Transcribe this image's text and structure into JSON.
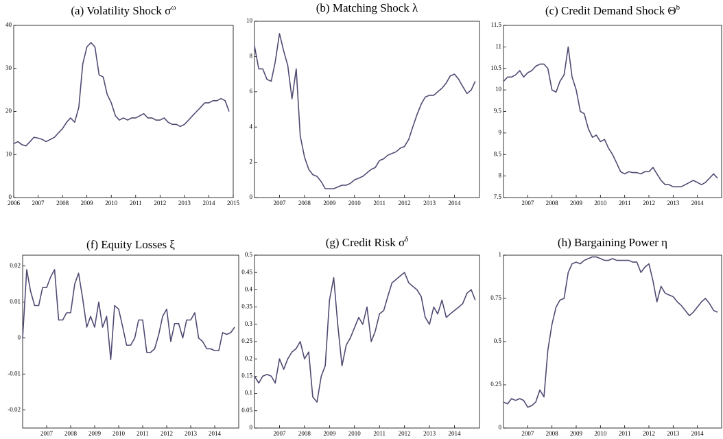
{
  "chart_data": [
    {
      "type": "line",
      "title": "(a) Volatility Shock σ",
      "title_superscript": "ω",
      "color": "#4f4a72",
      "x": [
        2006,
        2006.17,
        2006.33,
        2006.5,
        2006.67,
        2006.83,
        2007,
        2007.17,
        2007.33,
        2007.5,
        2007.67,
        2007.83,
        2008,
        2008.17,
        2008.33,
        2008.5,
        2008.67,
        2008.83,
        2009,
        2009.17,
        2009.33,
        2009.5,
        2009.67,
        2009.83,
        2010,
        2010.17,
        2010.33,
        2010.5,
        2010.67,
        2010.83,
        2011,
        2011.17,
        2011.33,
        2011.5,
        2011.67,
        2011.83,
        2012,
        2012.17,
        2012.33,
        2012.5,
        2012.67,
        2012.83,
        2013,
        2013.17,
        2013.33,
        2013.5,
        2013.67,
        2013.83,
        2014,
        2014.17,
        2014.33,
        2014.5,
        2014.67,
        2014.83
      ],
      "values": [
        12.5,
        13,
        12.3,
        12,
        13,
        14,
        13.8,
        13.5,
        13,
        13.5,
        14,
        15,
        16,
        17.5,
        18.5,
        17.5,
        21,
        31,
        35,
        36,
        35,
        28.5,
        28,
        24,
        22,
        19,
        18,
        18.5,
        18,
        18.5,
        18.5,
        19,
        19.5,
        18.5,
        18.5,
        18,
        18,
        18.5,
        17.5,
        17,
        17,
        16.5,
        17,
        18,
        19,
        20,
        21,
        22,
        22,
        22.5,
        22.5,
        23,
        22.5,
        20
      ],
      "xlim": [
        2006,
        2015
      ],
      "xticks": [
        2006,
        2007,
        2008,
        2009,
        2010,
        2011,
        2012,
        2013,
        2014,
        2015
      ],
      "ylim": [
        0,
        40
      ],
      "yticks": [
        0,
        10,
        20,
        30,
        40
      ]
    },
    {
      "type": "line",
      "title": "(b) Matching Shock λ",
      "color": "#4f4a72",
      "x": [
        2006,
        2006.17,
        2006.33,
        2006.5,
        2006.67,
        2006.83,
        2007,
        2007.17,
        2007.33,
        2007.5,
        2007.67,
        2007.83,
        2008,
        2008.17,
        2008.33,
        2008.5,
        2008.67,
        2008.83,
        2009,
        2009.17,
        2009.33,
        2009.5,
        2009.67,
        2009.83,
        2010,
        2010.17,
        2010.33,
        2010.5,
        2010.67,
        2010.83,
        2011,
        2011.17,
        2011.33,
        2011.5,
        2011.67,
        2011.83,
        2012,
        2012.17,
        2012.33,
        2012.5,
        2012.67,
        2012.83,
        2013,
        2013.17,
        2013.33,
        2013.5,
        2013.67,
        2013.83,
        2014,
        2014.17,
        2014.33,
        2014.5,
        2014.67,
        2014.83
      ],
      "values": [
        8.6,
        7.3,
        7.3,
        6.7,
        6.6,
        7.7,
        9.3,
        8.3,
        7.5,
        5.6,
        7.3,
        3.5,
        2.3,
        1.6,
        1.3,
        1.2,
        0.9,
        0.5,
        0.5,
        0.5,
        0.6,
        0.7,
        0.7,
        0.8,
        1.0,
        1.1,
        1.2,
        1.4,
        1.6,
        1.7,
        2.1,
        2.2,
        2.4,
        2.5,
        2.6,
        2.8,
        2.9,
        3.3,
        4.0,
        4.7,
        5.3,
        5.7,
        5.8,
        5.8,
        6.0,
        6.2,
        6.5,
        6.9,
        7.0,
        6.7,
        6.3,
        5.9,
        6.1,
        6.6
      ],
      "xlim": [
        2006,
        2015
      ],
      "xticks": [
        2007,
        2008,
        2009,
        2010,
        2011,
        2012,
        2013,
        2014
      ],
      "ylim": [
        0,
        10
      ],
      "yticks": [
        0,
        2,
        4,
        6,
        8,
        10
      ]
    },
    {
      "type": "line",
      "title": "(c) Credit Demand Shock Θ",
      "title_superscript": "b",
      "color": "#4f4a72",
      "x": [
        2006,
        2006.17,
        2006.33,
        2006.5,
        2006.67,
        2006.83,
        2007,
        2007.17,
        2007.33,
        2007.5,
        2007.67,
        2007.83,
        2008,
        2008.17,
        2008.33,
        2008.5,
        2008.67,
        2008.83,
        2009,
        2009.17,
        2009.33,
        2009.5,
        2009.67,
        2009.83,
        2010,
        2010.17,
        2010.33,
        2010.5,
        2010.67,
        2010.83,
        2011,
        2011.17,
        2011.33,
        2011.5,
        2011.67,
        2011.83,
        2012,
        2012.17,
        2012.33,
        2012.5,
        2012.67,
        2012.83,
        2013,
        2013.17,
        2013.33,
        2013.5,
        2013.67,
        2013.83,
        2014,
        2014.17,
        2014.33,
        2014.5,
        2014.67,
        2014.83
      ],
      "values": [
        10.2,
        10.3,
        10.3,
        10.35,
        10.45,
        10.3,
        10.4,
        10.45,
        10.55,
        10.6,
        10.6,
        10.5,
        10.0,
        9.95,
        10.2,
        10.35,
        11.0,
        10.3,
        10.0,
        9.5,
        9.45,
        9.1,
        8.9,
        8.95,
        8.8,
        8.85,
        8.65,
        8.5,
        8.3,
        8.1,
        8.05,
        8.1,
        8.08,
        8.08,
        8.05,
        8.1,
        8.1,
        8.2,
        8.05,
        7.9,
        7.8,
        7.8,
        7.75,
        7.75,
        7.75,
        7.8,
        7.85,
        7.9,
        7.85,
        7.8,
        7.85,
        7.95,
        8.05,
        7.95
      ],
      "xlim": [
        2006,
        2015
      ],
      "xticks": [
        2007,
        2008,
        2009,
        2010,
        2011,
        2012,
        2013,
        2014
      ],
      "ylim": [
        7.5,
        11.5
      ],
      "yticks": [
        7.5,
        8,
        8.5,
        9,
        9.5,
        10,
        10.5,
        11,
        11.5
      ]
    },
    {
      "type": "line",
      "title": "(f) Equity Losses ξ",
      "color": "#4f4a72",
      "x": [
        2006,
        2006.17,
        2006.33,
        2006.5,
        2006.67,
        2006.83,
        2007,
        2007.17,
        2007.33,
        2007.5,
        2007.67,
        2007.83,
        2008,
        2008.17,
        2008.33,
        2008.5,
        2008.67,
        2008.83,
        2009,
        2009.17,
        2009.33,
        2009.5,
        2009.67,
        2009.83,
        2010,
        2010.17,
        2010.33,
        2010.5,
        2010.67,
        2010.83,
        2011,
        2011.17,
        2011.33,
        2011.5,
        2011.67,
        2011.83,
        2012,
        2012.17,
        2012.33,
        2012.5,
        2012.67,
        2012.83,
        2013,
        2013.17,
        2013.33,
        2013.5,
        2013.67,
        2013.83,
        2014,
        2014.17,
        2014.33,
        2014.5,
        2014.67,
        2014.83
      ],
      "values": [
        0,
        0.019,
        0.013,
        0.009,
        0.009,
        0.014,
        0.014,
        0.017,
        0.019,
        0.005,
        0.005,
        0.007,
        0.007,
        0.015,
        0.018,
        0.011,
        0.003,
        0.006,
        0.003,
        0.01,
        0.003,
        0.006,
        -0.006,
        0.009,
        0.008,
        0.003,
        -0.002,
        -0.002,
        0.0,
        0.005,
        0.005,
        -0.004,
        -0.004,
        -0.003,
        0.001,
        0.006,
        0.008,
        -0.001,
        0.004,
        0.004,
        0.0,
        0.005,
        0.005,
        0.007,
        0.0,
        -0.001,
        -0.003,
        -0.003,
        -0.0035,
        -0.0035,
        0.0015,
        0.001,
        0.0015,
        0.003
      ],
      "xlim": [
        2006,
        2015
      ],
      "xticks": [
        2007,
        2008,
        2009,
        2010,
        2011,
        2012,
        2013,
        2014
      ],
      "ylim": [
        -0.025,
        0.023
      ],
      "yticks": [
        -0.02,
        -0.01,
        0,
        0.01,
        0.02
      ]
    },
    {
      "type": "line",
      "title": "(g) Credit Risk σ",
      "title_superscript": "δ",
      "color": "#4f4a72",
      "x": [
        2006,
        2006.17,
        2006.33,
        2006.5,
        2006.67,
        2006.83,
        2007,
        2007.17,
        2007.33,
        2007.5,
        2007.67,
        2007.83,
        2008,
        2008.17,
        2008.33,
        2008.5,
        2008.67,
        2008.83,
        2009,
        2009.17,
        2009.33,
        2009.5,
        2009.67,
        2009.83,
        2010,
        2010.17,
        2010.33,
        2010.5,
        2010.67,
        2010.83,
        2011,
        2011.17,
        2011.33,
        2011.5,
        2011.67,
        2011.83,
        2012,
        2012.17,
        2012.33,
        2012.5,
        2012.67,
        2012.83,
        2013,
        2013.17,
        2013.33,
        2013.5,
        2013.67,
        2013.83,
        2014,
        2014.17,
        2014.33,
        2014.5,
        2014.67,
        2014.83
      ],
      "values": [
        0.15,
        0.13,
        0.15,
        0.155,
        0.15,
        0.13,
        0.2,
        0.17,
        0.2,
        0.22,
        0.23,
        0.25,
        0.2,
        0.22,
        0.09,
        0.075,
        0.15,
        0.18,
        0.37,
        0.435,
        0.3,
        0.18,
        0.24,
        0.26,
        0.29,
        0.32,
        0.3,
        0.35,
        0.25,
        0.28,
        0.33,
        0.34,
        0.38,
        0.42,
        0.43,
        0.44,
        0.45,
        0.42,
        0.41,
        0.4,
        0.38,
        0.32,
        0.3,
        0.35,
        0.33,
        0.37,
        0.32,
        0.33,
        0.34,
        0.35,
        0.36,
        0.39,
        0.4,
        0.37
      ],
      "xlim": [
        2006,
        2015
      ],
      "xticks": [
        2007,
        2008,
        2009,
        2010,
        2011,
        2012,
        2013,
        2014
      ],
      "ylim": [
        0,
        0.5
      ],
      "yticks": [
        0,
        0.05,
        0.1,
        0.15,
        0.2,
        0.25,
        0.3,
        0.35,
        0.4,
        0.45,
        0.5
      ]
    },
    {
      "type": "line",
      "title": "(h) Bargaining Power η",
      "color": "#4f4a72",
      "x": [
        2006,
        2006.17,
        2006.33,
        2006.5,
        2006.67,
        2006.83,
        2007,
        2007.17,
        2007.33,
        2007.5,
        2007.67,
        2007.83,
        2008,
        2008.17,
        2008.33,
        2008.5,
        2008.67,
        2008.83,
        2009,
        2009.17,
        2009.33,
        2009.5,
        2009.67,
        2009.83,
        2010,
        2010.17,
        2010.33,
        2010.5,
        2010.67,
        2010.83,
        2011,
        2011.17,
        2011.33,
        2011.5,
        2011.67,
        2011.83,
        2012,
        2012.17,
        2012.33,
        2012.5,
        2012.67,
        2012.83,
        2013,
        2013.17,
        2013.33,
        2013.5,
        2013.67,
        2013.83,
        2014,
        2014.17,
        2014.33,
        2014.5,
        2014.67,
        2014.83
      ],
      "values": [
        0.15,
        0.14,
        0.17,
        0.16,
        0.17,
        0.16,
        0.12,
        0.13,
        0.15,
        0.22,
        0.18,
        0.45,
        0.6,
        0.7,
        0.74,
        0.75,
        0.9,
        0.95,
        0.96,
        0.95,
        0.97,
        0.98,
        0.99,
        0.99,
        0.98,
        0.97,
        0.97,
        0.98,
        0.97,
        0.97,
        0.97,
        0.97,
        0.96,
        0.96,
        0.9,
        0.93,
        0.95,
        0.85,
        0.73,
        0.82,
        0.78,
        0.77,
        0.76,
        0.73,
        0.71,
        0.68,
        0.65,
        0.67,
        0.7,
        0.73,
        0.75,
        0.72,
        0.68,
        0.67
      ],
      "xlim": [
        2006,
        2015
      ],
      "xticks": [
        2007,
        2008,
        2009,
        2010,
        2011,
        2012,
        2013,
        2014
      ],
      "ylim": [
        0,
        1
      ],
      "yticks": [
        0,
        0.25,
        0.5,
        0.75,
        1
      ]
    }
  ]
}
